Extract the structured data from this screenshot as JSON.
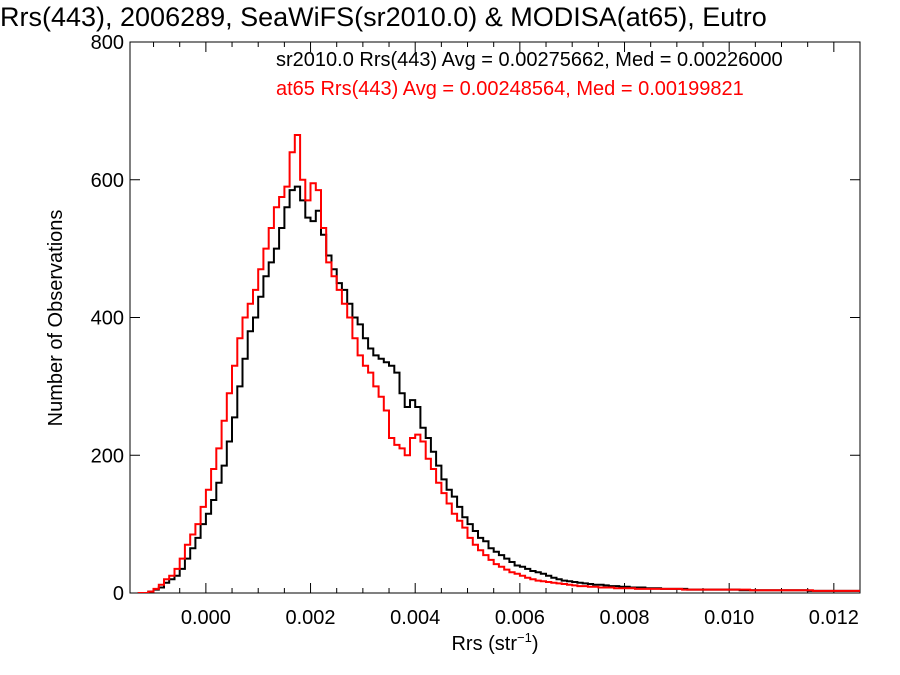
{
  "chart_data": {
    "type": "line",
    "drawstyle": "steps",
    "title": "Rrs(443), 2006289, SeaWiFS(sr2010.0) & MODISA(at65), Eutro",
    "xlabel": "Rrs (str",
    "xlabel_sup": "−1",
    "xlabel_close": ")",
    "ylabel": "Number of Observations",
    "xlim": [
      -0.00145,
      0.0125
    ],
    "ylim": [
      0,
      800
    ],
    "xticks": [
      0.0,
      0.002,
      0.004,
      0.006,
      0.008,
      0.01,
      0.012
    ],
    "xtick_labels": [
      "0.000",
      "0.002",
      "0.004",
      "0.006",
      "0.008",
      "0.010",
      "0.012"
    ],
    "yticks": [
      0,
      200,
      400,
      600,
      800
    ],
    "ytick_labels": [
      "0",
      "200",
      "400",
      "600",
      "800"
    ],
    "grid": false,
    "legend_placement": "top-right",
    "series": [
      {
        "name": "sr2010.0",
        "legend_text": "sr2010.0 Rrs(443) Avg = 0.00275662, Med = 0.00226000",
        "color": "#000000",
        "points": [
          [
            -0.0013,
            0
          ],
          [
            -0.0011,
            2
          ],
          [
            -0.001,
            5
          ],
          [
            -0.0009,
            8
          ],
          [
            -0.0008,
            15
          ],
          [
            -0.0007,
            20
          ],
          [
            -0.0006,
            25
          ],
          [
            -0.0005,
            35
          ],
          [
            -0.0004,
            50
          ],
          [
            -0.0003,
            65
          ],
          [
            -0.0002,
            80
          ],
          [
            -0.0001,
            100
          ],
          [
            0.0,
            115
          ],
          [
            0.0001,
            135
          ],
          [
            0.0002,
            160
          ],
          [
            0.0003,
            185
          ],
          [
            0.0004,
            220
          ],
          [
            0.0005,
            255
          ],
          [
            0.0006,
            300
          ],
          [
            0.0007,
            340
          ],
          [
            0.0008,
            380
          ],
          [
            0.0009,
            400
          ],
          [
            0.001,
            430
          ],
          [
            0.0011,
            460
          ],
          [
            0.0012,
            480
          ],
          [
            0.0013,
            500
          ],
          [
            0.0014,
            530
          ],
          [
            0.0015,
            560
          ],
          [
            0.0016,
            585
          ],
          [
            0.0017,
            590
          ],
          [
            0.0018,
            570
          ],
          [
            0.0019,
            545
          ],
          [
            0.002,
            540
          ],
          [
            0.0021,
            555
          ],
          [
            0.0022,
            520
          ],
          [
            0.0023,
            490
          ],
          [
            0.0024,
            470
          ],
          [
            0.0025,
            450
          ],
          [
            0.0026,
            440
          ],
          [
            0.0027,
            420
          ],
          [
            0.0028,
            400
          ],
          [
            0.0029,
            390
          ],
          [
            0.003,
            370
          ],
          [
            0.0031,
            355
          ],
          [
            0.0032,
            345
          ],
          [
            0.0033,
            340
          ],
          [
            0.0034,
            335
          ],
          [
            0.0035,
            330
          ],
          [
            0.0036,
            320
          ],
          [
            0.0037,
            290
          ],
          [
            0.0038,
            270
          ],
          [
            0.0039,
            280
          ],
          [
            0.004,
            270
          ],
          [
            0.0041,
            240
          ],
          [
            0.0042,
            225
          ],
          [
            0.0043,
            205
          ],
          [
            0.0044,
            185
          ],
          [
            0.0045,
            165
          ],
          [
            0.0046,
            150
          ],
          [
            0.0047,
            140
          ],
          [
            0.0048,
            125
          ],
          [
            0.0049,
            110
          ],
          [
            0.005,
            100
          ],
          [
            0.0051,
            90
          ],
          [
            0.0052,
            80
          ],
          [
            0.0053,
            75
          ],
          [
            0.0054,
            65
          ],
          [
            0.0055,
            60
          ],
          [
            0.0056,
            55
          ],
          [
            0.0057,
            50
          ],
          [
            0.0058,
            45
          ],
          [
            0.0059,
            40
          ],
          [
            0.006,
            38
          ],
          [
            0.0061,
            35
          ],
          [
            0.0062,
            32
          ],
          [
            0.0063,
            30
          ],
          [
            0.0064,
            28
          ],
          [
            0.0065,
            25
          ],
          [
            0.0066,
            22
          ],
          [
            0.0067,
            20
          ],
          [
            0.0068,
            18
          ],
          [
            0.0069,
            17
          ],
          [
            0.007,
            16
          ],
          [
            0.0071,
            15
          ],
          [
            0.0072,
            14
          ],
          [
            0.0073,
            13
          ],
          [
            0.0074,
            12
          ],
          [
            0.0075,
            12
          ],
          [
            0.0076,
            11
          ],
          [
            0.0077,
            10
          ],
          [
            0.0078,
            10
          ],
          [
            0.0079,
            9
          ],
          [
            0.008,
            9
          ],
          [
            0.0081,
            8
          ],
          [
            0.0082,
            8
          ],
          [
            0.0083,
            8
          ],
          [
            0.0084,
            7
          ],
          [
            0.0085,
            7
          ],
          [
            0.0086,
            7
          ],
          [
            0.0087,
            6
          ],
          [
            0.0088,
            6
          ],
          [
            0.0089,
            6
          ],
          [
            0.009,
            6
          ],
          [
            0.0091,
            6
          ],
          [
            0.0092,
            5
          ],
          [
            0.0093,
            5
          ],
          [
            0.0094,
            5
          ],
          [
            0.0095,
            5
          ],
          [
            0.0096,
            5
          ],
          [
            0.0097,
            5
          ],
          [
            0.0098,
            5
          ],
          [
            0.0099,
            5
          ],
          [
            0.01,
            5
          ],
          [
            0.0101,
            5
          ],
          [
            0.0102,
            4
          ],
          [
            0.0103,
            4
          ],
          [
            0.0104,
            4
          ],
          [
            0.0105,
            4
          ],
          [
            0.0106,
            4
          ],
          [
            0.0107,
            4
          ],
          [
            0.0108,
            4
          ],
          [
            0.0109,
            4
          ],
          [
            0.011,
            4
          ],
          [
            0.0111,
            4
          ],
          [
            0.0112,
            4
          ],
          [
            0.0113,
            4
          ],
          [
            0.0114,
            4
          ],
          [
            0.0115,
            3
          ],
          [
            0.0116,
            3
          ],
          [
            0.0117,
            3
          ],
          [
            0.0118,
            3
          ],
          [
            0.0119,
            3
          ],
          [
            0.012,
            3
          ],
          [
            0.0121,
            3
          ],
          [
            0.0122,
            3
          ],
          [
            0.0123,
            3
          ],
          [
            0.0124,
            3
          ],
          [
            0.0125,
            3
          ]
        ]
      },
      {
        "name": "at65",
        "legend_text": "at65 Rrs(443) Avg = 0.00248564, Med = 0.00199821",
        "color": "#ff0000",
        "points": [
          [
            -0.0013,
            0
          ],
          [
            -0.0011,
            2
          ],
          [
            -0.001,
            6
          ],
          [
            -0.0009,
            12
          ],
          [
            -0.0008,
            20
          ],
          [
            -0.0007,
            25
          ],
          [
            -0.0006,
            35
          ],
          [
            -0.0005,
            50
          ],
          [
            -0.0004,
            70
          ],
          [
            -0.0003,
            85
          ],
          [
            -0.0002,
            100
          ],
          [
            -0.0001,
            125
          ],
          [
            0.0,
            150
          ],
          [
            0.0001,
            180
          ],
          [
            0.0002,
            210
          ],
          [
            0.0003,
            250
          ],
          [
            0.0004,
            290
          ],
          [
            0.0005,
            330
          ],
          [
            0.0006,
            370
          ],
          [
            0.0007,
            400
          ],
          [
            0.0008,
            420
          ],
          [
            0.0009,
            440
          ],
          [
            0.001,
            470
          ],
          [
            0.0011,
            500
          ],
          [
            0.0012,
            530
          ],
          [
            0.0013,
            560
          ],
          [
            0.0014,
            575
          ],
          [
            0.0015,
            590
          ],
          [
            0.0016,
            640
          ],
          [
            0.0017,
            665
          ],
          [
            0.0018,
            600
          ],
          [
            0.0019,
            570
          ],
          [
            0.002,
            595
          ],
          [
            0.0021,
            585
          ],
          [
            0.0022,
            530
          ],
          [
            0.0023,
            480
          ],
          [
            0.0024,
            460
          ],
          [
            0.0025,
            440
          ],
          [
            0.0026,
            420
          ],
          [
            0.0027,
            400
          ],
          [
            0.0028,
            370
          ],
          [
            0.0029,
            345
          ],
          [
            0.003,
            330
          ],
          [
            0.0031,
            320
          ],
          [
            0.0032,
            300
          ],
          [
            0.0033,
            285
          ],
          [
            0.0034,
            265
          ],
          [
            0.0035,
            225
          ],
          [
            0.0036,
            215
          ],
          [
            0.0037,
            210
          ],
          [
            0.0038,
            200
          ],
          [
            0.0039,
            225
          ],
          [
            0.004,
            230
          ],
          [
            0.0041,
            220
          ],
          [
            0.0042,
            195
          ],
          [
            0.0043,
            180
          ],
          [
            0.0044,
            160
          ],
          [
            0.0045,
            145
          ],
          [
            0.0046,
            130
          ],
          [
            0.0047,
            115
          ],
          [
            0.0048,
            105
          ],
          [
            0.0049,
            95
          ],
          [
            0.005,
            80
          ],
          [
            0.0051,
            70
          ],
          [
            0.0052,
            62
          ],
          [
            0.0053,
            55
          ],
          [
            0.0054,
            48
          ],
          [
            0.0055,
            42
          ],
          [
            0.0056,
            38
          ],
          [
            0.0057,
            34
          ],
          [
            0.0058,
            30
          ],
          [
            0.0059,
            28
          ],
          [
            0.006,
            25
          ],
          [
            0.0061,
            22
          ],
          [
            0.0062,
            20
          ],
          [
            0.0063,
            18
          ],
          [
            0.0064,
            17
          ],
          [
            0.0065,
            16
          ],
          [
            0.0066,
            15
          ],
          [
            0.0067,
            14
          ],
          [
            0.0068,
            13
          ],
          [
            0.0069,
            12
          ],
          [
            0.007,
            11
          ],
          [
            0.0071,
            10
          ],
          [
            0.0072,
            10
          ],
          [
            0.0073,
            9
          ],
          [
            0.0074,
            9
          ],
          [
            0.0075,
            8
          ],
          [
            0.0076,
            8
          ],
          [
            0.0077,
            8
          ],
          [
            0.0078,
            7
          ],
          [
            0.0079,
            7
          ],
          [
            0.008,
            7
          ],
          [
            0.0081,
            7
          ],
          [
            0.0082,
            6
          ],
          [
            0.0083,
            6
          ],
          [
            0.0084,
            6
          ],
          [
            0.0085,
            6
          ],
          [
            0.0086,
            6
          ],
          [
            0.0087,
            6
          ],
          [
            0.0088,
            6
          ],
          [
            0.0089,
            6
          ],
          [
            0.009,
            6
          ],
          [
            0.0091,
            5
          ],
          [
            0.0092,
            5
          ],
          [
            0.0093,
            5
          ],
          [
            0.0094,
            5
          ],
          [
            0.0095,
            5
          ],
          [
            0.0096,
            5
          ],
          [
            0.0097,
            5
          ],
          [
            0.0098,
            5
          ],
          [
            0.0099,
            5
          ],
          [
            0.01,
            5
          ],
          [
            0.0101,
            5
          ],
          [
            0.0102,
            5
          ],
          [
            0.0103,
            5
          ],
          [
            0.0104,
            4
          ],
          [
            0.0105,
            4
          ],
          [
            0.0106,
            4
          ],
          [
            0.0107,
            4
          ],
          [
            0.0108,
            4
          ],
          [
            0.0109,
            4
          ],
          [
            0.011,
            4
          ],
          [
            0.0111,
            4
          ],
          [
            0.0112,
            4
          ],
          [
            0.0113,
            4
          ],
          [
            0.0114,
            4
          ],
          [
            0.0115,
            4
          ],
          [
            0.0116,
            3
          ],
          [
            0.0117,
            3
          ],
          [
            0.0118,
            3
          ],
          [
            0.0119,
            3
          ],
          [
            0.012,
            3
          ],
          [
            0.0121,
            3
          ],
          [
            0.0122,
            3
          ],
          [
            0.0123,
            3
          ],
          [
            0.0124,
            3
          ],
          [
            0.0125,
            3
          ]
        ]
      }
    ]
  }
}
